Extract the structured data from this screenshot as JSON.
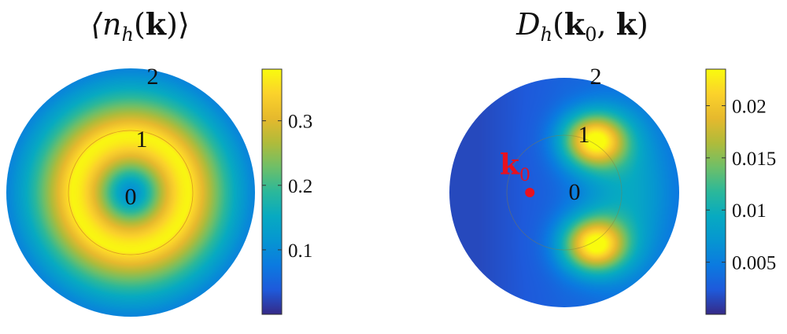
{
  "colors": {
    "parula": [
      "#352a87",
      "#1e5adb",
      "#0b7ae0",
      "#0696d1",
      "#07aac1",
      "#2bb89a",
      "#6ebf68",
      "#b0bb3a",
      "#e6b92d",
      "#fbd22b",
      "#f9fb0e"
    ],
    "k0_point": "#e8111f",
    "ring_line": "#c9602a"
  },
  "chart_data": [
    {
      "type": "heatmap",
      "coordinate_system": "polar",
      "title_parts": [
        "⟨",
        "n",
        "h",
        "(",
        "k",
        ")⟩"
      ],
      "radial_labels": [
        "2",
        "1",
        "0"
      ],
      "r_range": [
        0,
        2
      ],
      "colorbar": {
        "range": [
          0.0,
          0.38
        ],
        "ticks": [
          0.1,
          0.2,
          0.3
        ],
        "tick_labels": [
          "0.1",
          "0.2",
          "0.3"
        ]
      },
      "field": {
        "kind": "radial_ring",
        "peak_r": 0.95,
        "center_value": 0.1,
        "peak_value": 0.375,
        "edge_value": 0.09
      }
    },
    {
      "type": "heatmap",
      "coordinate_system": "polar",
      "title_parts": [
        "D",
        "h",
        "(",
        "k",
        "0",
        ", ",
        "k",
        ")"
      ],
      "radial_labels": [
        "2",
        "1",
        "0"
      ],
      "r_range": [
        0,
        2
      ],
      "colorbar": {
        "range": [
          0.0,
          0.0235
        ],
        "ticks": [
          0.005,
          0.01,
          0.015,
          0.02
        ],
        "tick_labels": [
          "0.005",
          "0.01",
          "0.015",
          "0.02"
        ]
      },
      "field": {
        "kind": "two_lobes",
        "lobe_angles_deg": [
          60,
          -60
        ],
        "lobe_r": 1.05,
        "peak_value": 0.0225,
        "background_value": 0.003
      },
      "annotation": {
        "label": "k",
        "subscript": "0",
        "point_r": 0.6,
        "point_angle_deg": 180
      }
    }
  ]
}
